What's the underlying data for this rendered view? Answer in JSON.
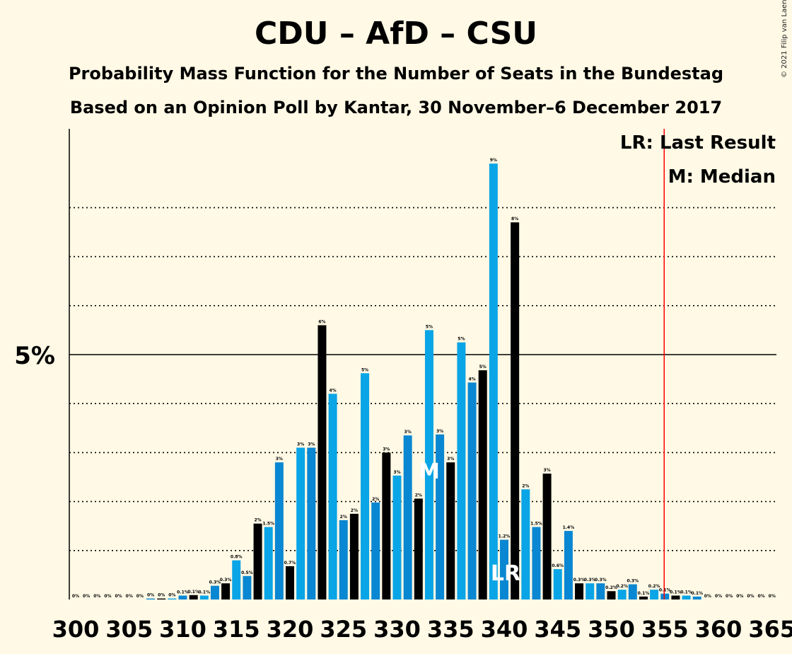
{
  "header": {
    "title": "CDU – AfD – CSU",
    "subtitle": "Probability Mass Function for the Number of Seats in the Bundestag",
    "subtitle2": "Based on an Opinion Poll by Kantar, 30 November–6 December 2017",
    "copyright": "© 2021 Filip van Laenen"
  },
  "legend": {
    "last_result": "LR: Last Result",
    "median": "M: Median"
  },
  "colors": {
    "background": "#FFF9E5",
    "bar_light": "#0AA5E6",
    "bar_mid": "#0A87D2",
    "bar_dark": "#000000",
    "last_result_line": "#FF0000"
  },
  "chart_data": {
    "type": "bar",
    "x": [
      300,
      301,
      302,
      303,
      304,
      305,
      306,
      307,
      308,
      309,
      310,
      311,
      312,
      313,
      314,
      315,
      316,
      317,
      318,
      319,
      320,
      321,
      322,
      323,
      324,
      325,
      326,
      327,
      328,
      329,
      330,
      331,
      332,
      333,
      334,
      335,
      336,
      337,
      338,
      339,
      340,
      341,
      342,
      343,
      344,
      345,
      346,
      347,
      348,
      349,
      350,
      351,
      352,
      353,
      354,
      355,
      356,
      357,
      358,
      359,
      360,
      361,
      362,
      363,
      364,
      365
    ],
    "values": [
      0,
      0,
      0,
      0,
      0,
      0,
      0,
      0.02,
      0.02,
      0.02,
      0.08,
      0.09,
      0.08,
      0.28,
      0.33,
      0.8,
      0.48,
      1.55,
      1.48,
      2.8,
      0.68,
      3.1,
      3.1,
      5.6,
      4.2,
      1.62,
      1.75,
      4.62,
      1.98,
      3.0,
      2.53,
      3.35,
      2.06,
      5.5,
      3.37,
      2.8,
      5.25,
      4.43,
      4.68,
      8.9,
      1.22,
      7.7,
      2.25,
      1.48,
      2.57,
      0.62,
      1.4,
      0.33,
      0.33,
      0.33,
      0.17,
      0.2,
      0.31,
      0.06,
      0.2,
      0.12,
      0.08,
      0.08,
      0.06,
      0,
      0,
      0,
      0,
      0,
      0,
      0
    ],
    "data_labels": [
      "0%",
      "0%",
      "0%",
      "0%",
      "0%",
      "0%",
      "0%",
      "0%",
      "0%",
      "0%",
      "0.1%",
      "0.1%",
      "0.1%",
      "0.3%",
      "0.3%",
      "0.8%",
      "0.5%",
      "2%",
      "1.5%",
      "3%",
      "0.7%",
      "3%",
      "3%",
      "6%",
      "4%",
      "2%",
      "2%",
      "5%",
      "2%",
      "3%",
      "3%",
      "3%",
      "2%",
      "5%",
      "3%",
      "3%",
      "5%",
      "4%",
      "5%",
      "9%",
      "1.2%",
      "8%",
      "2%",
      "1.5%",
      "3%",
      "0.6%",
      "1.4%",
      "0.3%",
      "0.3%",
      "0.3%",
      "0.2%",
      "0.2%",
      "0.3%",
      "0.1%",
      "0.2%",
      "0.1%",
      "0.1%",
      "0.1%",
      "0.1%",
      "0%",
      "0%",
      "0%",
      "0%",
      "0%",
      "0%",
      "0%"
    ],
    "x_ticks": [
      "300",
      "305",
      "310",
      "315",
      "320",
      "325",
      "330",
      "335",
      "340",
      "345",
      "350",
      "355",
      "360",
      "365"
    ],
    "y_tick_label": "5%",
    "y_tick_value": 5,
    "ylim": [
      0,
      9.6
    ],
    "dotted_gridlines": [
      1,
      2,
      3,
      4,
      6,
      7,
      8
    ],
    "median": 333,
    "median_marker": "M",
    "last_result": 340,
    "last_result_marker": "LR",
    "majority_line": 355
  }
}
